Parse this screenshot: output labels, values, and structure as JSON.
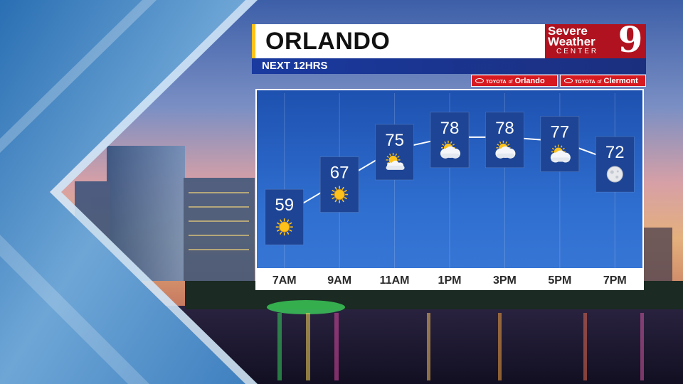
{
  "header": {
    "title": "ORLANDO",
    "subtitle": "NEXT 12HRS"
  },
  "brand": {
    "line1": "Severe",
    "line2": "Weather",
    "line3": "CENTER",
    "channel": "9"
  },
  "sponsors": [
    {
      "brand": "TOYOTA",
      "of": "of",
      "city": "Orlando"
    },
    {
      "brand": "TOYOTA",
      "of": "of",
      "city": "Clermont"
    }
  ],
  "colors": {
    "panel_box": "#1e4595",
    "line": "#ffffff",
    "accent_yellow": "#ffc21a",
    "brand_red": "#b0131f",
    "sponsor_red": "#d71920"
  },
  "chart_data": {
    "type": "line",
    "x": [
      "7AM",
      "9AM",
      "11AM",
      "1PM",
      "3PM",
      "5PM",
      "7PM"
    ],
    "series": [
      {
        "values": [
          59,
          67,
          75,
          78,
          78,
          77,
          72
        ]
      }
    ],
    "icons": [
      "sun-icon",
      "sun-icon",
      "partly-sunny-icon",
      "partly-cloudy-icon",
      "partly-cloudy-icon",
      "partly-cloudy-icon",
      "moon-icon"
    ],
    "ylim": [
      55,
      82
    ],
    "grid": true
  }
}
